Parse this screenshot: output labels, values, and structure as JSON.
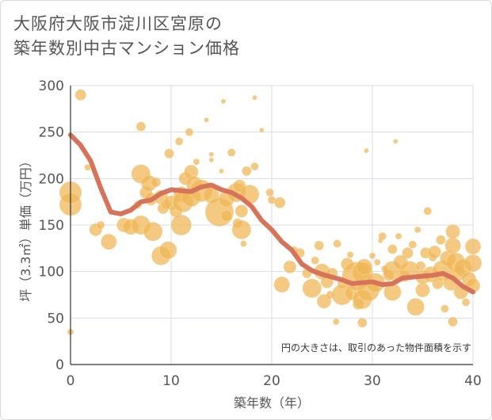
{
  "chart_data": {
    "type": "scatter",
    "title_lines": [
      "大阪府大阪市淀川区宮原の",
      "築年数別中古マンション価格"
    ],
    "xlabel": "築年数（年）",
    "ylabel": "坪（3.3㎡）単価（万円）",
    "xlim": [
      0,
      40
    ],
    "ylim": [
      0,
      300
    ],
    "xticks": [
      0,
      10,
      20,
      30,
      40
    ],
    "yticks": [
      0,
      50,
      100,
      150,
      200,
      250,
      300
    ],
    "grid": true,
    "annotation": "円の大きさは、取引のあった物件面積を示す",
    "colors": {
      "bubble": "#f0b653",
      "trend": "#d6735a",
      "grid": "#d8dde6"
    },
    "points": [
      [
        0,
        35,
        4
      ],
      [
        0,
        172,
        14
      ],
      [
        0,
        185,
        14
      ],
      [
        1,
        290,
        7
      ],
      [
        1.7,
        212,
        4
      ],
      [
        2.5,
        145,
        8
      ],
      [
        3,
        150,
        5
      ],
      [
        3.8,
        132,
        10
      ],
      [
        5.3,
        150,
        9
      ],
      [
        6,
        148,
        10
      ],
      [
        6.7,
        172,
        5
      ],
      [
        7,
        150,
        12
      ],
      [
        7,
        205,
        12
      ],
      [
        7,
        256,
        6
      ],
      [
        7.5,
        185,
        8
      ],
      [
        7.8,
        195,
        10
      ],
      [
        8,
        178,
        8
      ],
      [
        8.2,
        143,
        12
      ],
      [
        8.5,
        196,
        6
      ],
      [
        9,
        117,
        12
      ],
      [
        9,
        180,
        9
      ],
      [
        9.2,
        168,
        7
      ],
      [
        9.5,
        172,
        6
      ],
      [
        9.7,
        123,
        11
      ],
      [
        9.8,
        227,
        6
      ],
      [
        10,
        174,
        9
      ],
      [
        10.5,
        165,
        8
      ],
      [
        10.8,
        240,
        5
      ],
      [
        11,
        150,
        13
      ],
      [
        11,
        183,
        10
      ],
      [
        11.2,
        175,
        13
      ],
      [
        11.4,
        200,
        8
      ],
      [
        11.8,
        250,
        5
      ],
      [
        12,
        180,
        12
      ],
      [
        12,
        207,
        9
      ],
      [
        12.3,
        194,
        10
      ],
      [
        12.5,
        218,
        4
      ],
      [
        13,
        187,
        14
      ],
      [
        13.5,
        263,
        3
      ],
      [
        14,
        182,
        10
      ],
      [
        14,
        226,
        3
      ],
      [
        14,
        220,
        3
      ],
      [
        14.8,
        164,
        18
      ],
      [
        15,
        208,
        3
      ],
      [
        15.2,
        283,
        3
      ],
      [
        15.5,
        178,
        10
      ],
      [
        15.5,
        160,
        7
      ],
      [
        16,
        228,
        5
      ],
      [
        16.5,
        185,
        12
      ],
      [
        16.6,
        152,
        6
      ],
      [
        16.8,
        192,
        8
      ],
      [
        17,
        145,
        12
      ],
      [
        17,
        165,
        8
      ],
      [
        17.2,
        130,
        4
      ],
      [
        17.5,
        208,
        6
      ],
      [
        17.8,
        183,
        12
      ],
      [
        18.3,
        213,
        5
      ],
      [
        18.3,
        287,
        3
      ],
      [
        19,
        252,
        3
      ],
      [
        19.8,
        185,
        5
      ],
      [
        20,
        177,
        5
      ],
      [
        20.8,
        174,
        7
      ],
      [
        21,
        86,
        10
      ],
      [
        21.8,
        105,
        8
      ],
      [
        22.2,
        123,
        5
      ],
      [
        22.8,
        120,
        6
      ],
      [
        23.5,
        98,
        6
      ],
      [
        24,
        82,
        12
      ],
      [
        24.3,
        112,
        5
      ],
      [
        24.7,
        128,
        6
      ],
      [
        25,
        100,
        10
      ],
      [
        25.2,
        68,
        9
      ],
      [
        25.5,
        89,
        8
      ],
      [
        25.8,
        75,
        5
      ],
      [
        26,
        98,
        7
      ],
      [
        26.4,
        46,
        4
      ],
      [
        26.5,
        130,
        5
      ],
      [
        27,
        87,
        6
      ],
      [
        27,
        75,
        13
      ],
      [
        27.5,
        108,
        8
      ],
      [
        27.8,
        118,
        4
      ],
      [
        28,
        77,
        9
      ],
      [
        28.4,
        95,
        18
      ],
      [
        28.6,
        65,
        7
      ],
      [
        29,
        45,
        6
      ],
      [
        29,
        70,
        12
      ],
      [
        29,
        99,
        13
      ],
      [
        29.2,
        105,
        10
      ],
      [
        29.4,
        230,
        3
      ],
      [
        29.6,
        80,
        14
      ],
      [
        30,
        117,
        4
      ],
      [
        30.3,
        88,
        12
      ],
      [
        30.5,
        110,
        4
      ],
      [
        30.8,
        133,
        3
      ],
      [
        31,
        138,
        5
      ],
      [
        31.2,
        103,
        4
      ],
      [
        31.6,
        96,
        7
      ],
      [
        32,
        78,
        11
      ],
      [
        32,
        101,
        12
      ],
      [
        32,
        124,
        6
      ],
      [
        32.3,
        240,
        3
      ],
      [
        32.6,
        138,
        4
      ],
      [
        32.8,
        110,
        9
      ],
      [
        33.2,
        95,
        7
      ],
      [
        33.5,
        120,
        7
      ],
      [
        33.7,
        101,
        12
      ],
      [
        34,
        129,
        5
      ],
      [
        34.3,
        62,
        11
      ],
      [
        34.5,
        145,
        4
      ],
      [
        34.8,
        106,
        6
      ],
      [
        35,
        80,
        9
      ],
      [
        35,
        94,
        9
      ],
      [
        35.3,
        120,
        7
      ],
      [
        35.5,
        165,
        5
      ],
      [
        35.8,
        97,
        10
      ],
      [
        36,
        115,
        5
      ],
      [
        36.2,
        121,
        8
      ],
      [
        36.5,
        87,
        7
      ],
      [
        36.8,
        134,
        6
      ],
      [
        37,
        101,
        13
      ],
      [
        37.2,
        60,
        5
      ],
      [
        37.5,
        114,
        10
      ],
      [
        37.8,
        88,
        10
      ],
      [
        38,
        46,
        6
      ],
      [
        38,
        128,
        10
      ],
      [
        38,
        143,
        9
      ],
      [
        38.3,
        110,
        12
      ],
      [
        38.6,
        98,
        9
      ],
      [
        38.8,
        78,
        9
      ],
      [
        39,
        104,
        11
      ],
      [
        39.3,
        67,
        5
      ],
      [
        39.6,
        92,
        9
      ],
      [
        40,
        85,
        9
      ],
      [
        40,
        109,
        11
      ],
      [
        40,
        127,
        10
      ]
    ],
    "trend": [
      [
        0,
        247
      ],
      [
        1,
        236
      ],
      [
        2,
        219
      ],
      [
        3,
        190
      ],
      [
        4,
        164
      ],
      [
        5,
        162
      ],
      [
        6,
        166
      ],
      [
        7,
        175
      ],
      [
        8,
        177
      ],
      [
        9,
        184
      ],
      [
        10,
        188
      ],
      [
        11,
        187
      ],
      [
        12,
        186
      ],
      [
        13,
        191
      ],
      [
        14,
        193
      ],
      [
        15,
        188
      ],
      [
        16,
        185
      ],
      [
        17,
        179
      ],
      [
        18,
        170
      ],
      [
        19,
        155
      ],
      [
        20,
        145
      ],
      [
        21,
        132
      ],
      [
        22,
        123
      ],
      [
        23,
        108
      ],
      [
        24,
        101
      ],
      [
        25,
        97
      ],
      [
        26,
        94
      ],
      [
        27,
        91
      ],
      [
        28,
        87
      ],
      [
        29,
        88
      ],
      [
        30,
        89
      ],
      [
        31,
        86
      ],
      [
        32,
        87
      ],
      [
        33,
        93
      ],
      [
        34,
        94
      ],
      [
        35,
        95
      ],
      [
        36,
        96
      ],
      [
        37,
        98
      ],
      [
        38,
        93
      ],
      [
        39,
        84
      ],
      [
        40,
        78
      ]
    ]
  }
}
